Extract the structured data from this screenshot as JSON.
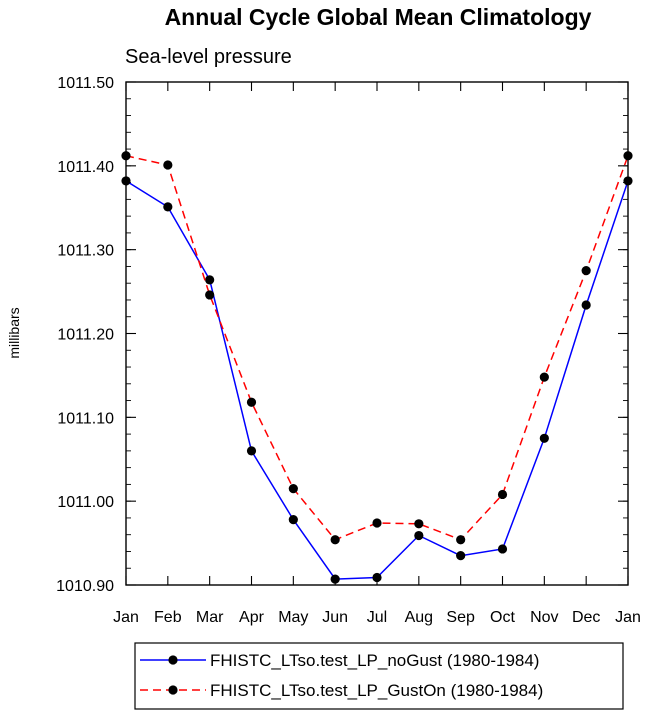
{
  "chart_data": {
    "type": "line",
    "title": "Annual Cycle Global Mean Climatology",
    "subtitle": "Sea-level pressure",
    "xlabel": "",
    "ylabel": "millibars",
    "categories": [
      "Jan",
      "Feb",
      "Mar",
      "Apr",
      "May",
      "Jun",
      "Jul",
      "Aug",
      "Sep",
      "Oct",
      "Nov",
      "Dec",
      "Jan"
    ],
    "ylim": [
      1010.9,
      1011.5
    ],
    "yticks": [
      1010.9,
      1011.0,
      1011.1,
      1011.2,
      1011.3,
      1011.4,
      1011.5
    ],
    "ytick_labels": [
      "1010.90",
      "1011.00",
      "1011.10",
      "1011.20",
      "1011.30",
      "1011.40",
      "1011.50"
    ],
    "grid": false,
    "legend_position": "bottom",
    "series": [
      {
        "name": "FHISTC_LTso.test_LP_noGust (1980-1984)",
        "color": "#0000ff",
        "dash": "solid",
        "values": [
          1011.382,
          1011.351,
          1011.264,
          1011.06,
          1010.978,
          1010.907,
          1010.909,
          1010.959,
          1010.935,
          1010.943,
          1011.075,
          1011.234,
          1011.382
        ]
      },
      {
        "name": "FHISTC_LTso.test_LP_GustOn (1980-1984)",
        "color": "#ff0000",
        "dash": "dashed",
        "values": [
          1011.412,
          1011.401,
          1011.246,
          1011.118,
          1011.015,
          1010.954,
          1010.974,
          1010.973,
          1010.954,
          1011.008,
          1011.148,
          1011.275,
          1011.412
        ]
      }
    ]
  }
}
